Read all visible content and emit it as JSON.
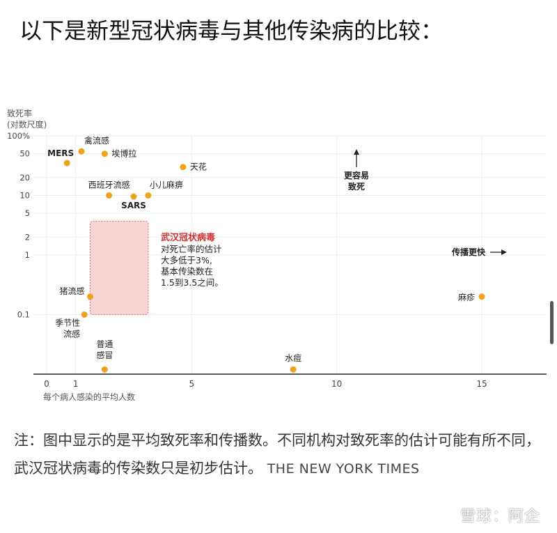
{
  "heading": "以下是新型冠状病毒与其他传染病的比较：",
  "chart_data": {
    "type": "scatter",
    "ylabel_line1": "致死率",
    "ylabel_line2": "(对数尺度)",
    "xlabel": "每个病人感染的平均人数",
    "y_scale": "log",
    "xlim": [
      -0.5,
      17.5
    ],
    "ylim": [
      0.01,
      100
    ],
    "x_ticks": [
      {
        "v": 0,
        "label": "0"
      },
      {
        "v": 1,
        "label": "1"
      },
      {
        "v": 5,
        "label": "5"
      },
      {
        "v": 10,
        "label": "10"
      },
      {
        "v": 15,
        "label": "15"
      }
    ],
    "y_ticks": [
      {
        "v": 100,
        "label": "100%"
      },
      {
        "v": 50,
        "label": "50"
      },
      {
        "v": 20,
        "label": "20"
      },
      {
        "v": 10,
        "label": "10"
      },
      {
        "v": 5,
        "label": "5"
      },
      {
        "v": 2,
        "label": "2"
      },
      {
        "v": 1,
        "label": "1"
      },
      {
        "v": 0.1,
        "label": "0.1"
      }
    ],
    "points": [
      {
        "name": "MERS",
        "x": 0.7,
        "y": 35,
        "bold": true
      },
      {
        "name": "禽流感",
        "x": 1.2,
        "y": 55
      },
      {
        "name": "埃博拉",
        "x": 2.0,
        "y": 50
      },
      {
        "name": "天花",
        "x": 4.7,
        "y": 30
      },
      {
        "name": "西班牙流感",
        "x": 2.15,
        "y": 10
      },
      {
        "name": "小儿麻痹",
        "x": 3.5,
        "y": 10
      },
      {
        "name": "SARS",
        "x": 3.0,
        "y": 9.6,
        "bold": true
      },
      {
        "name": "猪流感",
        "x": 1.5,
        "y": 0.2
      },
      {
        "name": "季节性流感",
        "x": 1.3,
        "y": 0.1
      },
      {
        "name": "麻疹",
        "x": 15.0,
        "y": 0.2
      },
      {
        "name": "普通感冒",
        "x": 2.0,
        "y": 0.012
      },
      {
        "name": "水痘",
        "x": 8.5,
        "y": 0.012
      }
    ],
    "highlight": {
      "x0": 1.5,
      "x1": 3.5,
      "y0": 0.1,
      "y1": 3.7,
      "color": "#f7c6c6",
      "border": "#e07a7a"
    },
    "point_color": "#f0a21c",
    "annotation": {
      "title": "武汉冠状病毒",
      "title_color": "#d32f2f",
      "lines": [
        "对死亡率的估计",
        "大多低于3%,",
        "基本传染数在",
        "1.5到3.5之间。"
      ]
    },
    "arrow_up_lines": [
      "更容易",
      "致死"
    ],
    "arrow_right_label": "传播更快"
  },
  "note": "注：图中显示的是平均致死率和传播数。不同机构对致死率的估计可能有所不同，武汉冠状病毒的传染数只是初步估计。",
  "source": "THE NEW YORK TIMES",
  "watermark": "雪球：阿企"
}
